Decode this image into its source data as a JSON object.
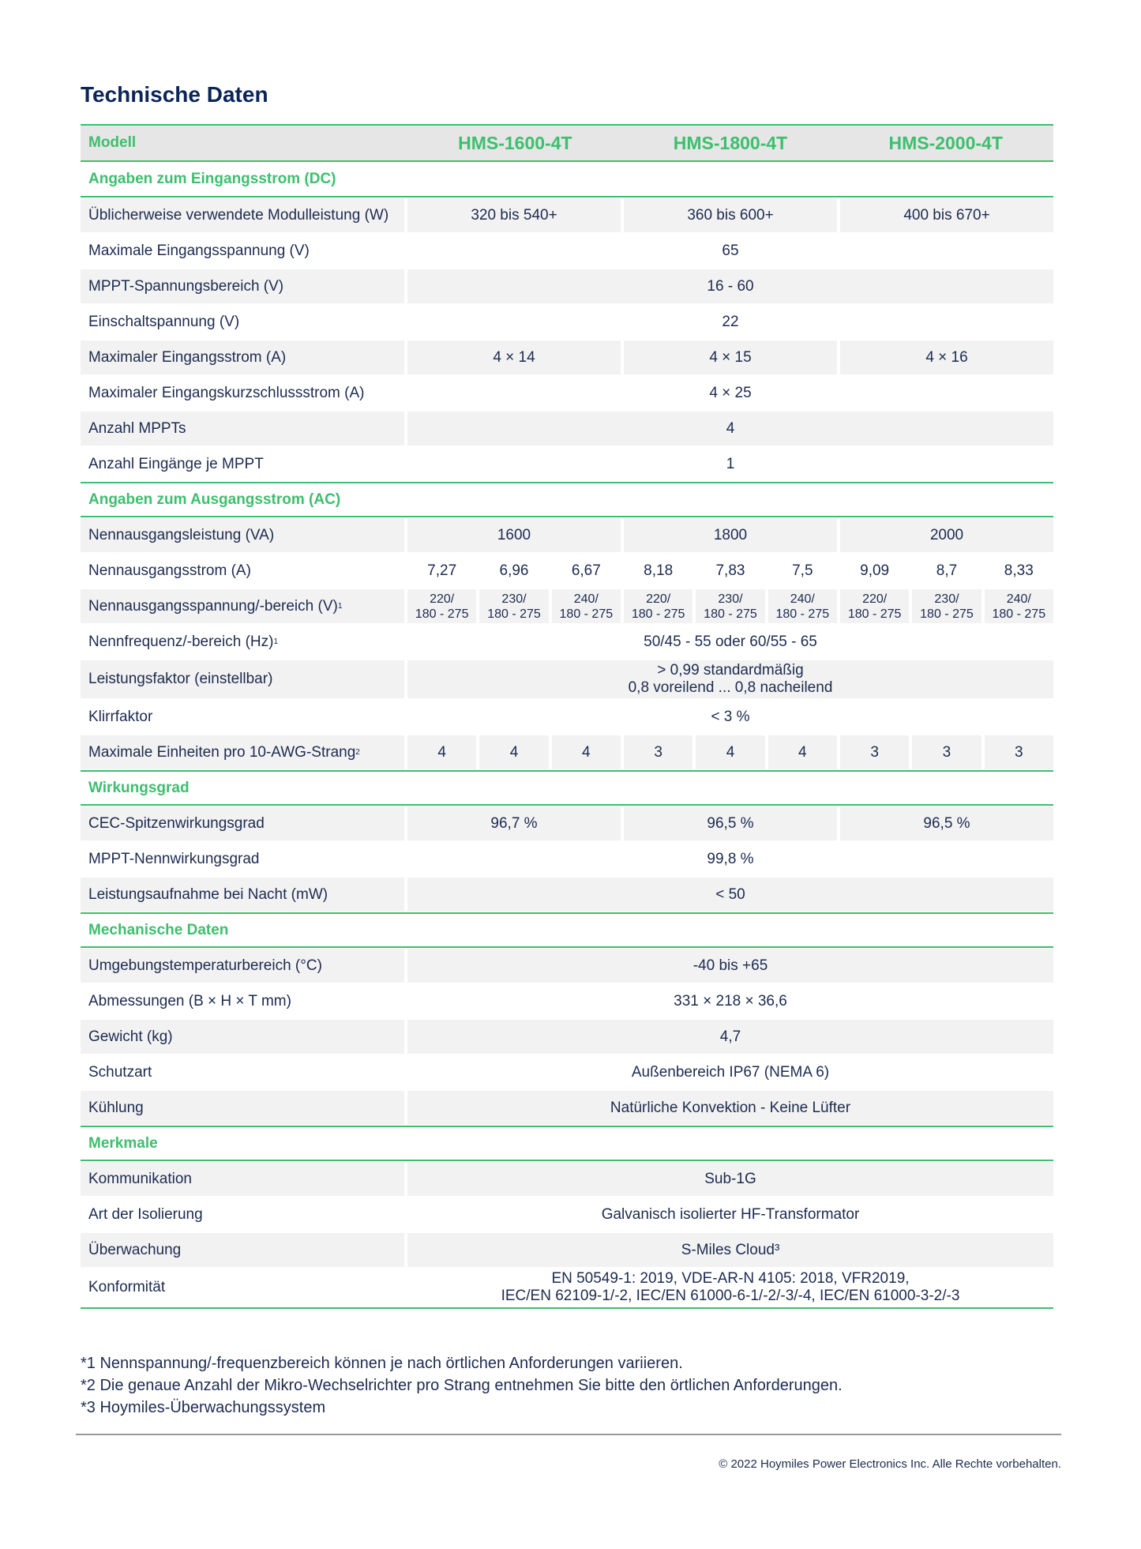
{
  "title": "Technische Daten",
  "header": {
    "label": "Modell",
    "models": [
      "HMS-1600-4T",
      "HMS-1800-4T",
      "HMS-2000-4T"
    ]
  },
  "sections": [
    {
      "title": "Angaben zum Eingangsstrom (DC)",
      "rows": [
        {
          "label": "Üblicherweise verwendete Modulleistung (W)",
          "values": [
            "320 bis 540+",
            "360 bis 600+",
            "400 bis 670+"
          ]
        },
        {
          "label": "Maximale Eingangsspannung (V)",
          "values": [
            "65"
          ]
        },
        {
          "label": "MPPT-Spannungsbereich (V)",
          "values": [
            "16 - 60"
          ]
        },
        {
          "label": "Einschaltspannung (V)",
          "values": [
            "22"
          ]
        },
        {
          "label": "Maximaler Eingangsstrom (A)",
          "values": [
            "4 × 14",
            "4 × 15",
            "4 × 16"
          ]
        },
        {
          "label": "Maximaler Eingangskurzschlussstrom (A)",
          "values": [
            "4 × 25"
          ]
        },
        {
          "label": "Anzahl MPPTs",
          "values": [
            "4"
          ]
        },
        {
          "label": "Anzahl Eingänge je MPPT",
          "values": [
            "1"
          ]
        }
      ]
    },
    {
      "title": "Angaben zum Ausgangsstrom (AC)",
      "rows": [
        {
          "label": "Nennausgangsleistung (VA)",
          "values": [
            "1600",
            "1800",
            "2000"
          ]
        },
        {
          "label": "Nennausgangsstrom (A)",
          "values": [
            "7,27",
            "6,96",
            "6,67",
            "8,18",
            "7,83",
            "7,5",
            "9,09",
            "8,7",
            "8,33"
          ]
        },
        {
          "label": "Nennausgangsspannung/-bereich (V)",
          "sup": "1",
          "small": true,
          "values": [
            "220/\n180 - 275",
            "230/\n180 - 275",
            "240/\n180 - 275",
            "220/\n180 - 275",
            "230/\n180 - 275",
            "240/\n180 - 275",
            "220/\n180 - 275",
            "230/\n180 - 275",
            "240/\n180 - 275"
          ]
        },
        {
          "label": "Nennfrequenz/-bereich (Hz)",
          "sup": "1",
          "values": [
            "50/45 - 55 oder 60/55 - 65"
          ]
        },
        {
          "label": "Leistungsfaktor (einstellbar)",
          "tall": true,
          "values": [
            "> 0,99 standardmäßig\n0,8 voreilend ... 0,8 nacheilend"
          ]
        },
        {
          "label": "Klirrfaktor",
          "values": [
            "< 3 %"
          ]
        },
        {
          "label": "Maximale Einheiten pro 10-AWG-Strang",
          "sup": "2",
          "values": [
            "4",
            "4",
            "4",
            "3",
            "4",
            "4",
            "3",
            "3",
            "3"
          ]
        }
      ]
    },
    {
      "title": "Wirkungsgrad",
      "rows": [
        {
          "label": "CEC-Spitzenwirkungsgrad",
          "values": [
            "96,7 %",
            "96,5 %",
            "96,5 %"
          ]
        },
        {
          "label": "MPPT-Nennwirkungsgrad",
          "values": [
            "99,8 %"
          ]
        },
        {
          "label": "Leistungsaufnahme bei Nacht (mW)",
          "values": [
            "< 50"
          ]
        }
      ]
    },
    {
      "title": "Mechanische Daten",
      "rows": [
        {
          "label": "Umgebungstemperaturbereich (°C)",
          "values": [
            "-40 bis +65"
          ]
        },
        {
          "label": "Abmessungen (B × H × T mm)",
          "values": [
            "331 × 218 × 36,6"
          ]
        },
        {
          "label": "Gewicht (kg)",
          "values": [
            "4,7"
          ]
        },
        {
          "label": "Schutzart",
          "values": [
            "Außenbereich IP67 (NEMA 6)"
          ]
        },
        {
          "label": "Kühlung",
          "values": [
            "Natürliche Konvektion - Keine Lüfter"
          ]
        }
      ]
    },
    {
      "title": "Merkmale",
      "rows": [
        {
          "label": "Kommunikation",
          "values": [
            "Sub-1G"
          ]
        },
        {
          "label": "Art der Isolierung",
          "values": [
            "Galvanisch isolierter HF-Transformator"
          ]
        },
        {
          "label": "Überwachung",
          "values": [
            "S-Miles Cloud³"
          ]
        },
        {
          "label": "Konformität",
          "tall": true,
          "values": [
            "EN 50549-1: 2019, VDE-AR-N 4105: 2018, VFR2019,\nIEC/EN 62109-1/-2, IEC/EN 61000-6-1/-2/-3/-4, IEC/EN 61000-3-2/-3"
          ]
        }
      ]
    }
  ],
  "footnotes": [
    "*1 Nennspannung/-frequenzbereich können je nach örtlichen Anforderungen variieren.",
    "*2 Die genaue Anzahl der Mikro-Wechselrichter pro Strang entnehmen Sie bitte den örtlichen Anforderungen.",
    "*3 Hoymiles-Überwachungssystem"
  ],
  "copyright": "© 2022 Hoymiles Power Electronics Inc. Alle Rechte vorbehalten.",
  "colors": {
    "accent": "#3dbf6e",
    "title": "#0b2559",
    "text": "#1d2b4f",
    "stripe": "#f2f2f2"
  }
}
